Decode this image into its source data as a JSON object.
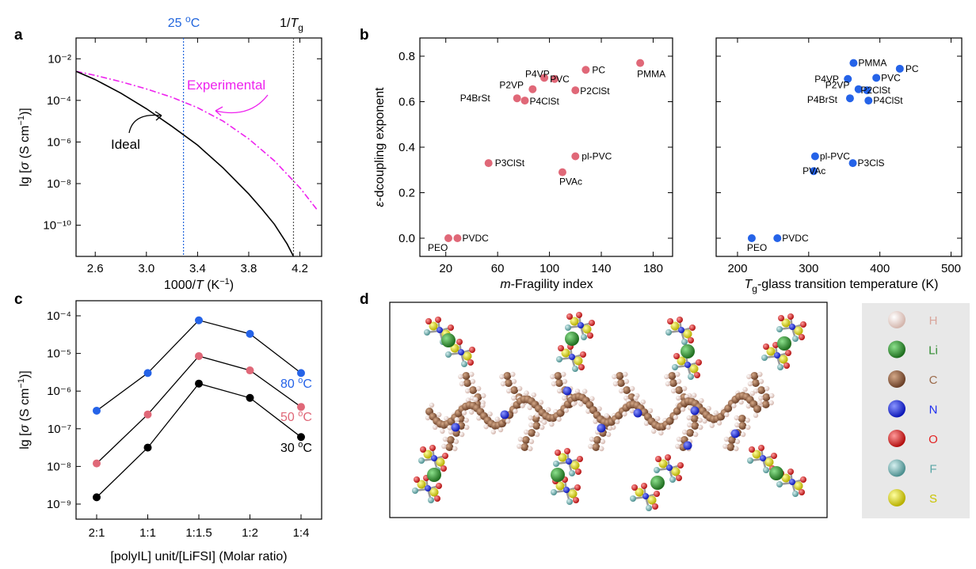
{
  "panels": {
    "a": {
      "label": "a",
      "xlabel": "1000/T (K⁻¹)",
      "ylabel": "lg [σ (S cm⁻¹)]",
      "vline_25C_label": "25 ºC",
      "vline_Tg_label": "1/Tg",
      "annotation_experimental": "Experimental",
      "annotation_ideal": "Ideal"
    },
    "b": {
      "label": "b"
    },
    "c": {
      "label": "c"
    },
    "d": {
      "label": "d",
      "legend": [
        {
          "symbol": "H",
          "color": "#e8cfc8",
          "text_color": "#d9a59b"
        },
        {
          "symbol": "Li",
          "color": "#2f8b2f",
          "text_color": "#2f8b2f"
        },
        {
          "symbol": "C",
          "color": "#8a5a3c",
          "text_color": "#9b6a4a"
        },
        {
          "symbol": "N",
          "color": "#1f2ef0",
          "text_color": "#1f2ef0"
        },
        {
          "symbol": "O",
          "color": "#e22424",
          "text_color": "#e22424"
        },
        {
          "symbol": "F",
          "color": "#6fb0b0",
          "text_color": "#5aa6a6"
        },
        {
          "symbol": "S",
          "color": "#e8e200",
          "text_color": "#c9c400"
        }
      ]
    }
  },
  "chart_data": [
    {
      "id": "a",
      "type": "line",
      "xlabel": "1000/T (K⁻¹)",
      "ylabel": "lg [σ (S cm⁻¹)]",
      "xlim": [
        2.45,
        4.37
      ],
      "ylim": [
        -11.5,
        -1.0
      ],
      "xticks": [
        2.6,
        3.0,
        3.4,
        3.8,
        4.2
      ],
      "xtick_labels": [
        "2.6",
        "3.0",
        "3.4",
        "3.8",
        "4.2"
      ],
      "yticks": [
        -10,
        -8,
        -6,
        -4,
        -2
      ],
      "ytick_labels": [
        "10⁻¹⁰",
        "10⁻⁸",
        "10⁻⁶",
        "10⁻⁴",
        "10⁻²"
      ],
      "vlines": [
        {
          "x": 3.29,
          "label": "25 ºC",
          "color": "#2266dd"
        },
        {
          "x": 4.15,
          "label": "1/Tg",
          "color": "#555555"
        }
      ],
      "series": [
        {
          "name": "Experimental",
          "color": "#ee22ee",
          "style": "dashdot",
          "x": [
            2.45,
            2.6,
            2.8,
            3.0,
            3.2,
            3.4,
            3.6,
            3.8,
            4.0,
            4.2,
            4.34
          ],
          "y": [
            -2.6,
            -2.8,
            -3.1,
            -3.45,
            -3.85,
            -4.35,
            -5.0,
            -5.85,
            -6.9,
            -8.2,
            -9.3
          ]
        },
        {
          "name": "Ideal",
          "color": "#000000",
          "style": "solid",
          "x": [
            2.45,
            2.6,
            2.8,
            3.0,
            3.2,
            3.4,
            3.6,
            3.8,
            3.9,
            4.0,
            4.1,
            4.15
          ],
          "y": [
            -2.6,
            -3.0,
            -3.65,
            -4.4,
            -5.25,
            -6.15,
            -7.25,
            -8.5,
            -9.2,
            -9.95,
            -10.9,
            -11.5
          ]
        }
      ]
    },
    {
      "id": "b1",
      "type": "scatter",
      "xlabel": "m-Fragility index",
      "ylabel": "ε-dcoupling exponent",
      "xlim": [
        0,
        195
      ],
      "ylim": [
        -0.08,
        0.88
      ],
      "xticks": [
        20,
        60,
        100,
        140,
        180
      ],
      "xtick_labels": [
        "20",
        "60",
        "100",
        "140",
        "180"
      ],
      "yticks": [
        0.0,
        0.2,
        0.4,
        0.6,
        0.8
      ],
      "ytick_labels": [
        "0.0",
        "0.2",
        "0.4",
        "0.6",
        "0.8"
      ],
      "color": "#e06878",
      "points": [
        {
          "name": "PMMA",
          "x": 170,
          "y": 0.77
        },
        {
          "name": "PC",
          "x": 128,
          "y": 0.74
        },
        {
          "name": "PVC",
          "x": 104,
          "y": 0.7
        },
        {
          "name": "P4VP",
          "x": 96,
          "y": 0.705
        },
        {
          "name": "P2VP",
          "x": 87,
          "y": 0.655
        },
        {
          "name": "P2ClSt",
          "x": 120,
          "y": 0.65
        },
        {
          "name": "P4BrSt",
          "x": 75,
          "y": 0.615
        },
        {
          "name": "P4ClSt",
          "x": 81,
          "y": 0.605
        },
        {
          "name": "pl-PVC",
          "x": 120,
          "y": 0.36
        },
        {
          "name": "P3ClSt",
          "x": 53,
          "y": 0.33
        },
        {
          "name": "PVAc",
          "x": 110,
          "y": 0.29
        },
        {
          "name": "PEO",
          "x": 22,
          "y": 0.0
        },
        {
          "name": "PVDC",
          "x": 29,
          "y": 0.0
        }
      ]
    },
    {
      "id": "b2",
      "type": "scatter",
      "xlabel": "Tg-glass transition temperature (K)",
      "ylabel": "",
      "xlim": [
        170,
        515
      ],
      "ylim": [
        -0.08,
        0.88
      ],
      "xticks": [
        200,
        300,
        400,
        500
      ],
      "xtick_labels": [
        "200",
        "300",
        "400",
        "500"
      ],
      "yticks": [
        0.0,
        0.2,
        0.4,
        0.6,
        0.8
      ],
      "color": "#2563e8",
      "points": [
        {
          "name": "PMMA",
          "x": 363,
          "y": 0.77
        },
        {
          "name": "PC",
          "x": 428,
          "y": 0.745
        },
        {
          "name": "PVC",
          "x": 395,
          "y": 0.705
        },
        {
          "name": "P4VP",
          "x": 355,
          "y": 0.7
        },
        {
          "name": "P2VP",
          "x": 370,
          "y": 0.655
        },
        {
          "name": "P2ClSt",
          "x": 382,
          "y": 0.65
        },
        {
          "name": "P4BrSt",
          "x": 358,
          "y": 0.615
        },
        {
          "name": "P4ClSt",
          "x": 384,
          "y": 0.605
        },
        {
          "name": "pl-PVC",
          "x": 309,
          "y": 0.36
        },
        {
          "name": "P3ClS",
          "x": 362,
          "y": 0.33
        },
        {
          "name": "PVAc",
          "x": 307,
          "y": 0.295
        },
        {
          "name": "PEO",
          "x": 220,
          "y": 0.0
        },
        {
          "name": "PVDC",
          "x": 256,
          "y": 0.0
        }
      ]
    },
    {
      "id": "c",
      "type": "line",
      "xlabel": "[polyIL] unit/[LiFSI] (Molar ratio)",
      "ylabel": "lg [σ (S cm⁻¹)]",
      "categories": [
        "2:1",
        "1:1",
        "1:1.5",
        "1:2",
        "1:4"
      ],
      "ylim": [
        -9.4,
        -3.6
      ],
      "yticks": [
        -9,
        -8,
        -7,
        -6,
        -5,
        -4
      ],
      "ytick_labels": [
        "10⁻⁹",
        "10⁻⁸",
        "10⁻⁷",
        "10⁻⁶",
        "10⁻⁵",
        "10⁻⁴"
      ],
      "series": [
        {
          "name": "80 ºC",
          "color": "#2563e8",
          "values": [
            -6.52,
            -5.52,
            -4.12,
            -4.48,
            -5.52
          ]
        },
        {
          "name": "50 ºC",
          "color": "#e06878",
          "values": [
            -7.92,
            -6.62,
            -5.07,
            -5.45,
            -6.42
          ]
        },
        {
          "name": "30 ºC",
          "color": "#000000",
          "values": [
            -8.82,
            -7.5,
            -5.8,
            -6.18,
            -7.22
          ]
        }
      ]
    }
  ]
}
